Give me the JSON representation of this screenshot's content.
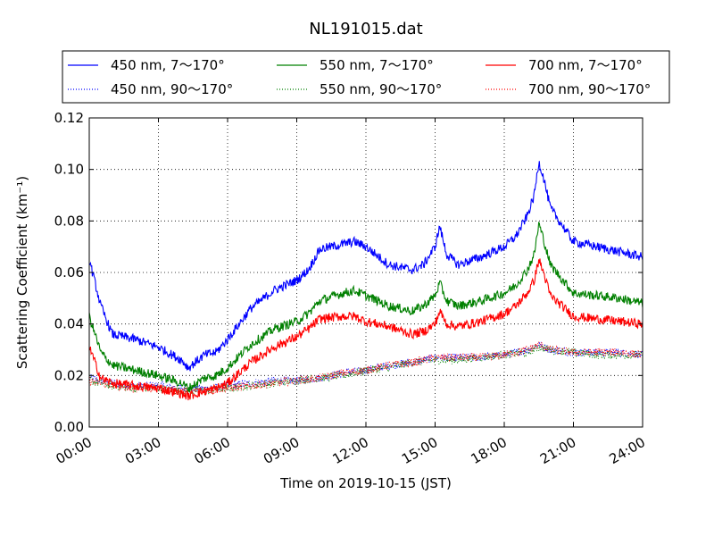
{
  "chart_data": {
    "type": "line",
    "title": "NL191015.dat",
    "xlabel": "Time on 2019-10-15 (JST)",
    "ylabel": "Scattering Coefficient (km⁻¹)",
    "xlim": [
      0,
      24
    ],
    "ylim": [
      0,
      0.12
    ],
    "x_ticks": [
      "00:00",
      "03:00",
      "06:00",
      "09:00",
      "12:00",
      "15:00",
      "18:00",
      "21:00",
      "24:00"
    ],
    "y_ticks": [
      "0.00",
      "0.02",
      "0.04",
      "0.06",
      "0.08",
      "0.10",
      "0.12"
    ],
    "grid": true,
    "legend_position": "top",
    "series": [
      {
        "name": "450 nm, 7～170°",
        "color": "#0000ff",
        "style": "solid",
        "x": [
          0,
          0.5,
          1,
          2,
          3,
          4,
          4.3,
          5,
          5.5,
          6,
          7,
          8,
          9,
          9.5,
          10,
          11,
          11.5,
          12,
          13,
          14,
          14.5,
          15,
          15.2,
          15.5,
          16,
          17,
          18,
          18.5,
          19,
          19.3,
          19.5,
          19.7,
          20,
          21,
          22,
          23,
          24
        ],
        "values": [
          0.065,
          0.047,
          0.036,
          0.034,
          0.031,
          0.026,
          0.023,
          0.028,
          0.029,
          0.034,
          0.046,
          0.053,
          0.057,
          0.061,
          0.069,
          0.071,
          0.072,
          0.07,
          0.063,
          0.061,
          0.063,
          0.07,
          0.078,
          0.067,
          0.063,
          0.066,
          0.07,
          0.074,
          0.082,
          0.09,
          0.103,
          0.097,
          0.085,
          0.072,
          0.07,
          0.068,
          0.066
        ]
      },
      {
        "name": "450 nm, 90～170°",
        "color": "#0000ff",
        "style": "dotted",
        "x": [
          0,
          1,
          2,
          3,
          4,
          5,
          6,
          7,
          8,
          9,
          10,
          11,
          12,
          13,
          14,
          15,
          16,
          17,
          18,
          19,
          19.5,
          20,
          21,
          22,
          23,
          24
        ],
        "values": [
          0.019,
          0.017,
          0.016,
          0.016,
          0.015,
          0.015,
          0.016,
          0.017,
          0.018,
          0.018,
          0.019,
          0.021,
          0.022,
          0.024,
          0.025,
          0.027,
          0.027,
          0.027,
          0.028,
          0.03,
          0.032,
          0.03,
          0.029,
          0.029,
          0.029,
          0.028
        ]
      },
      {
        "name": "550 nm, 7～170°",
        "color": "#008000",
        "style": "solid",
        "x": [
          0,
          0.5,
          1,
          2,
          3,
          4,
          4.3,
          5,
          5.5,
          6,
          7,
          8,
          9,
          9.5,
          10,
          11,
          11.5,
          12,
          13,
          14,
          14.5,
          15,
          15.2,
          15.5,
          16,
          17,
          18,
          18.5,
          19,
          19.3,
          19.5,
          19.7,
          20,
          21,
          22,
          23,
          24
        ],
        "values": [
          0.043,
          0.029,
          0.024,
          0.022,
          0.02,
          0.017,
          0.015,
          0.019,
          0.02,
          0.023,
          0.032,
          0.038,
          0.041,
          0.044,
          0.049,
          0.052,
          0.053,
          0.051,
          0.047,
          0.045,
          0.047,
          0.051,
          0.056,
          0.049,
          0.047,
          0.049,
          0.052,
          0.055,
          0.061,
          0.067,
          0.079,
          0.073,
          0.063,
          0.052,
          0.051,
          0.05,
          0.048
        ]
      },
      {
        "name": "550 nm, 90～170°",
        "color": "#008000",
        "style": "dotted",
        "x": [
          0,
          1,
          2,
          3,
          4,
          5,
          6,
          7,
          8,
          9,
          10,
          11,
          12,
          13,
          14,
          15,
          16,
          17,
          18,
          19,
          19.5,
          20,
          21,
          22,
          23,
          24
        ],
        "values": [
          0.018,
          0.016,
          0.015,
          0.015,
          0.014,
          0.014,
          0.015,
          0.016,
          0.017,
          0.018,
          0.019,
          0.02,
          0.022,
          0.023,
          0.025,
          0.026,
          0.026,
          0.027,
          0.028,
          0.029,
          0.031,
          0.03,
          0.029,
          0.028,
          0.028,
          0.028
        ]
      },
      {
        "name": "700 nm, 7～170°",
        "color": "#ff0000",
        "style": "solid",
        "x": [
          0,
          0.5,
          1,
          2,
          3,
          4,
          4.3,
          5,
          5.5,
          6,
          7,
          8,
          9,
          9.5,
          10,
          11,
          11.5,
          12,
          13,
          14,
          14.5,
          15,
          15.2,
          15.5,
          16,
          17,
          18,
          18.5,
          19,
          19.3,
          19.5,
          19.7,
          20,
          21,
          22,
          23,
          24
        ],
        "values": [
          0.031,
          0.019,
          0.017,
          0.016,
          0.015,
          0.013,
          0.012,
          0.014,
          0.015,
          0.017,
          0.025,
          0.031,
          0.035,
          0.038,
          0.042,
          0.043,
          0.043,
          0.041,
          0.039,
          0.036,
          0.037,
          0.04,
          0.045,
          0.04,
          0.039,
          0.041,
          0.044,
          0.047,
          0.052,
          0.057,
          0.065,
          0.06,
          0.051,
          0.043,
          0.042,
          0.041,
          0.04
        ]
      },
      {
        "name": "700 nm, 90～170°",
        "color": "#ff0000",
        "style": "dotted",
        "x": [
          0,
          1,
          2,
          3,
          4,
          5,
          6,
          7,
          8,
          9,
          10,
          11,
          12,
          13,
          14,
          15,
          16,
          17,
          18,
          19,
          19.5,
          20,
          21,
          22,
          23,
          24
        ],
        "values": [
          0.018,
          0.016,
          0.015,
          0.015,
          0.014,
          0.014,
          0.015,
          0.016,
          0.017,
          0.018,
          0.019,
          0.021,
          0.022,
          0.024,
          0.025,
          0.027,
          0.027,
          0.027,
          0.028,
          0.03,
          0.032,
          0.03,
          0.029,
          0.029,
          0.029,
          0.028
        ]
      }
    ]
  }
}
